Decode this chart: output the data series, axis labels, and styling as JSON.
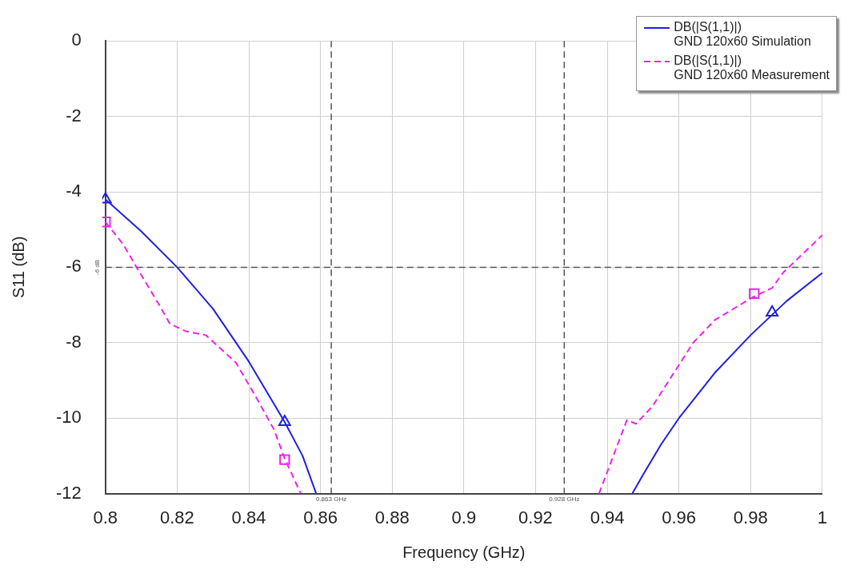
{
  "chart_data": {
    "type": "line",
    "xlabel": "Frequency (GHz)",
    "ylabel": "S11 (dB)",
    "xlim": [
      0.8,
      1
    ],
    "ylim": [
      -12,
      0
    ],
    "xticks": [
      0.8,
      0.82,
      0.84,
      0.86,
      0.88,
      0.9,
      0.92,
      0.94,
      0.96,
      0.98,
      1
    ],
    "yticks": [
      0,
      -2,
      -4,
      -6,
      -8,
      -10,
      -12
    ],
    "grid": true,
    "legend": "top right",
    "series": [
      {
        "name": "DB(|S(1,1)|)\nGND 120x60 Simulation",
        "color": "#2020e0",
        "line_style": "solid",
        "marker": "none",
        "x": [
          0.8,
          0.81,
          0.82,
          0.83,
          0.84,
          0.85,
          0.855,
          0.8588,
          null,
          0.947,
          0.95,
          0.955,
          0.96,
          0.97,
          0.98,
          0.99,
          1
        ],
        "values": [
          -4.2,
          -5.05,
          -6,
          -7.1,
          -8.5,
          -10.1,
          -11,
          -12,
          null,
          -12,
          -11.5,
          -10.7,
          -10,
          -8.8,
          -7.8,
          -6.9,
          -6.15
        ]
      },
      {
        "name": "DB(|S(1,1)|)\nGND 120x60 Measurement",
        "color": "#f020f0",
        "line_style": "dashed",
        "marker": "none",
        "x": [
          0.8,
          0.805,
          0.8087,
          0.815,
          0.818,
          0.8225,
          0.828,
          0.8364,
          0.842,
          0.847,
          0.85,
          0.8545,
          null,
          0.9377,
          0.9455,
          0.948,
          0.9525,
          0.964,
          0.97,
          0.9805,
          0.986,
          0.989,
          1
        ],
        "values": [
          -4.8,
          -5.4,
          -6,
          -7,
          -7.5,
          -7.7,
          -7.8,
          -8.53,
          -9.44,
          -10.3,
          -11.07,
          -12,
          null,
          -12,
          -10.05,
          -10.15,
          -9.7,
          -8,
          -7.4,
          -6.8,
          -6.55,
          -6.15,
          -5.15
        ]
      },
      {
        "type": "scatter",
        "color": "#2020e0",
        "marker": "triangle",
        "x": [
          0.8,
          0.85,
          0.986
        ],
        "values": [
          -4.2,
          -10.1,
          -7.2
        ]
      },
      {
        "type": "scatter",
        "color": "#f020f0",
        "marker": "square",
        "x": [
          0.8,
          0.85,
          0.981
        ],
        "values": [
          -4.8,
          -11.1,
          -6.7
        ]
      }
    ],
    "ref_lines": [
      {
        "axis": "x",
        "value": 0.863,
        "label": "0.863 GHz",
        "color": "#555555",
        "line_style": "dashed"
      },
      {
        "axis": "x",
        "value": 0.928,
        "label": "0.928 GHz",
        "color": "#555555",
        "line_style": "dashed"
      },
      {
        "axis": "y",
        "value": -6,
        "label": "-6 dB",
        "color": "#555555",
        "line_style": "dashed"
      }
    ]
  }
}
